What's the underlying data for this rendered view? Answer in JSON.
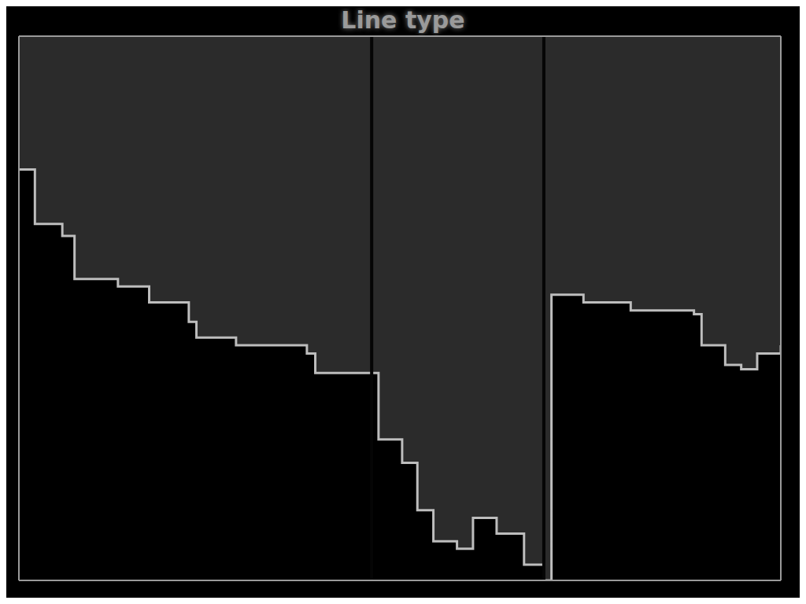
{
  "chart_data": {
    "type": "area",
    "title": "Line type",
    "x": [
      0,
      2.1,
      5.7,
      7.3,
      13.0,
      17.1,
      22.3,
      23.3,
      28.5,
      37.8,
      38.9,
      45.1,
      47.2,
      50.3,
      52.3,
      54.4,
      57.5,
      59.6,
      62.7,
      66.3,
      68.9,
      69.9,
      74.1,
      80.3,
      88.6,
      89.6,
      92.7,
      94.8,
      96.9,
      100
    ],
    "values": [
      24.5,
      34.5,
      36.7,
      44.6,
      46.0,
      48.9,
      52.5,
      55.4,
      56.8,
      58.3,
      61.9,
      61.9,
      74.1,
      78.4,
      87.1,
      92.8,
      94.2,
      88.5,
      91.4,
      97.1,
      100,
      47.5,
      48.9,
      50.4,
      51.1,
      56.8,
      60.4,
      61.2,
      58.3,
      56.8
    ],
    "dividers": [
      46.3,
      68.9
    ],
    "color": "#bdbdbd",
    "xlim": [
      0,
      100
    ],
    "ylim": [
      0,
      100
    ],
    "xticks": [
      0,
      10,
      20,
      30,
      40,
      50,
      60,
      70,
      80,
      90,
      100
    ],
    "yticks": [
      0,
      20,
      40,
      60,
      80,
      100
    ],
    "grid": true,
    "tick_labels": false
  }
}
